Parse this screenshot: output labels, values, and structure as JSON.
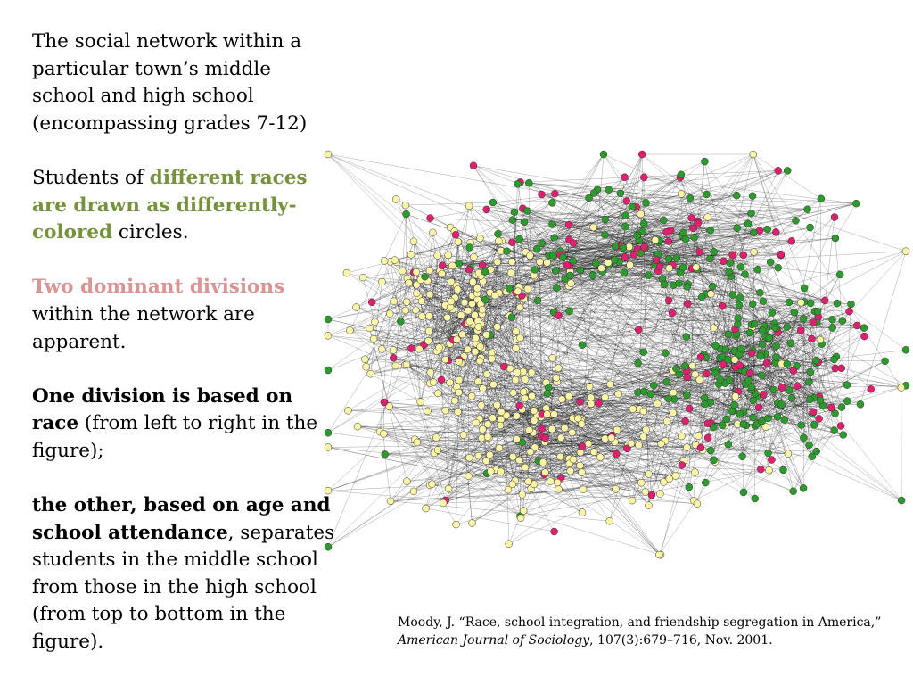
{
  "text": {
    "p1": "The social network within a particular town’s middle school and high school (encompassing grades 7-12)",
    "p2": {
      "pre": "Students of ",
      "hl": "different races are drawn as differently-colored",
      "post": " circles."
    },
    "p3": {
      "hl": "Two dominant divisions",
      "post": " within the network are apparent."
    },
    "p4": {
      "b1": "One division is based on race",
      "post": " (from left to right in the figure);"
    },
    "p5": {
      "b1": "the other, based on age and school attendance",
      "post": ", separates students in the middle school from those in the high school (from top to bottom in the figure)."
    }
  },
  "citation": {
    "pre": "Moody, J. “Race, school integration, and friendship segregation in America,” ",
    "journal": "American Journal of Sociology",
    "post": ", 107(3):679–716, Nov. 2001."
  },
  "colors": {
    "yellow": "#fcf5a6",
    "green": "#2d9a2d",
    "pink": "#e0206e",
    "edge": "#1a1a1a",
    "highlight_green": "#76923c",
    "highlight_pink": "#d99594"
  }
}
